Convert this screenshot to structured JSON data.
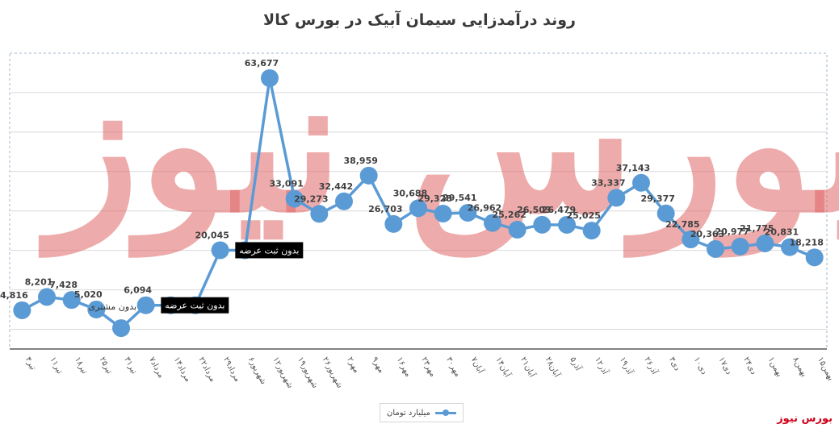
{
  "chart_data": {
    "type": "line",
    "title": "روند درآمدزایی سیمان آبیک در بورس کالا",
    "series": [
      {
        "name": "میلیارد تومان",
        "color": "#5b9bd5",
        "values": [
          4816,
          8201,
          7428,
          5020,
          300,
          6094,
          6094,
          6094,
          20045,
          20045,
          63677,
          33091,
          29273,
          32442,
          38959,
          26703,
          30688,
          29328,
          29541,
          26962,
          25262,
          26503,
          26479,
          25025,
          33337,
          37143,
          29377,
          22785,
          20363,
          20977,
          21775,
          20831,
          18218
        ]
      }
    ],
    "value_labels": [
      "4,816",
      "8,201",
      "7,428",
      "5,020",
      "",
      "6,094",
      "",
      "",
      "20,045",
      "",
      "63,677",
      "33,091",
      "29,273",
      "32,442",
      "38,959",
      "26,703",
      "30,688",
      "29,328",
      "29,541",
      "26,962",
      "25,262",
      "26,503",
      "26,479",
      "25,025",
      "33,337",
      "37,143",
      "29,377",
      "22,785",
      "20,363",
      "20,977",
      "21,775",
      "20,831",
      "18,218"
    ],
    "categories": [
      "۴تیر",
      "۱۱تیر",
      "۱۸تیر",
      "۲۵تیر",
      "۳۱تیر",
      "۷مرداد",
      "۱۴مرداد",
      "۲۲مرداد",
      "۲۹مرداد",
      "۶شهریور",
      "۱۲شهریور",
      "۱۹شهریور",
      "۲۶شهریور",
      "۲مهر",
      "۹مهر",
      "۱۶مهر",
      "۲۳مهر",
      "۳۰مهر",
      "۷آبان",
      "۱۴آبان",
      "۲۱آبان",
      "۲۸آبان",
      "۵آذر",
      "۱۲آذر",
      "۱۹آذر",
      "۲۶آذر",
      "۳دی",
      "۱۰دی",
      "۱۷دی",
      "۲۴دی",
      "۱بهمن",
      "۸بهمن",
      "۱۵بهمن"
    ],
    "annotations": [
      {
        "text": "بدون مشتری",
        "index": 3
      },
      {
        "text": "بدون ثبت عرضه",
        "index": 6
      },
      {
        "text": "بدون ثبت عرضه",
        "index": 9
      }
    ],
    "ylim": [
      -5000,
      70000
    ],
    "grid": true,
    "legend_position": "bottom"
  },
  "brand": "بورس نیوز",
  "watermark": "بورس نیوز"
}
